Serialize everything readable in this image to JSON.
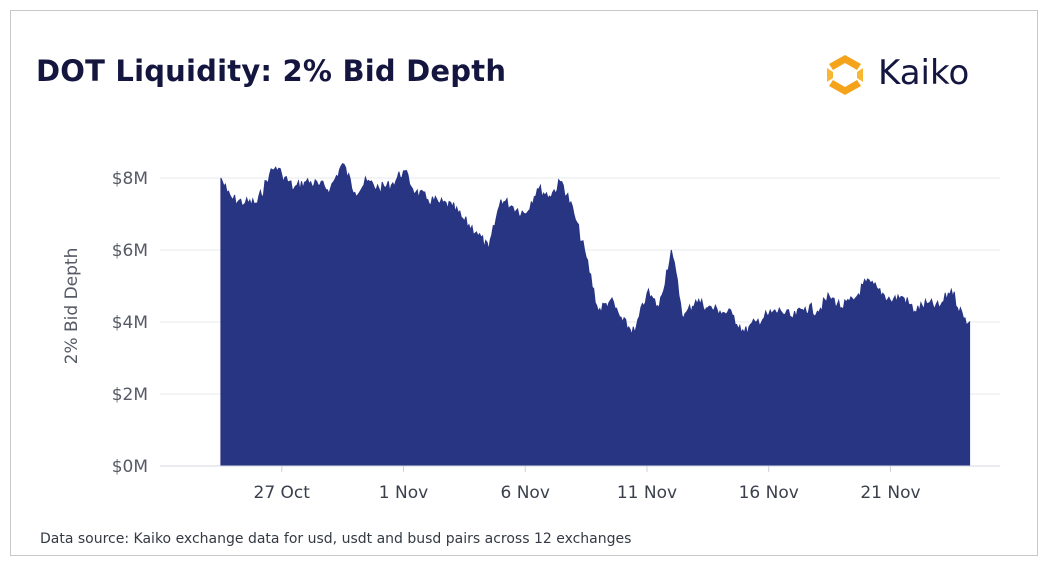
{
  "title": "DOT Liquidity: 2% Bid Depth",
  "logo": {
    "text": "Kaiko",
    "icon": "kaiko-logo-icon",
    "colors": {
      "orange": "#f5a31a",
      "dark": "#14163f"
    }
  },
  "source": "Data source: Kaiko exchange data for usd, usdt and busd pairs across 12 exchanges",
  "chart_data": {
    "type": "area",
    "title": "DOT Liquidity: 2% Bid Depth",
    "ylabel": "2% Bid Depth",
    "xlabel": "",
    "ylim": [
      0,
      8500000
    ],
    "y_ticks": [
      {
        "value": 0,
        "label": "$0M"
      },
      {
        "value": 2000000,
        "label": "$2M"
      },
      {
        "value": 4000000,
        "label": "$4M"
      },
      {
        "value": 6000000,
        "label": "$6M"
      },
      {
        "value": 8000000,
        "label": "$8M"
      }
    ],
    "x_ticks": [
      {
        "date": "2022-10-27",
        "label": "27 Oct"
      },
      {
        "date": "2022-11-01",
        "label": "1 Nov"
      },
      {
        "date": "2022-11-06",
        "label": "6 Nov"
      },
      {
        "date": "2022-11-11",
        "label": "11 Nov"
      },
      {
        "date": "2022-11-16",
        "label": "16 Nov"
      },
      {
        "date": "2022-11-21",
        "label": "21 Nov"
      }
    ],
    "xlim": [
      "2022-10-22T00:00",
      "2022-11-25T12:00"
    ],
    "grid": true,
    "fill_color": "#283583",
    "series": [
      {
        "x": [
          "2022-10-24T12:00",
          "2022-10-24T18:00",
          "2022-10-25T00:00",
          "2022-10-25T12:00",
          "2022-10-26T00:00",
          "2022-10-26T12:00",
          "2022-10-26T18:00",
          "2022-10-27T00:00",
          "2022-10-27T12:00",
          "2022-10-28T00:00",
          "2022-10-28T12:00",
          "2022-10-29T00:00",
          "2022-10-29T12:00",
          "2022-10-30T00:00",
          "2022-10-30T12:00",
          "2022-10-31T00:00",
          "2022-10-31T12:00",
          "2022-11-01T00:00",
          "2022-11-01T12:00",
          "2022-11-02T00:00",
          "2022-11-02T12:00",
          "2022-11-03T00:00",
          "2022-11-03T12:00",
          "2022-11-04T00:00",
          "2022-11-04T12:00",
          "2022-11-05T00:00",
          "2022-11-05T12:00",
          "2022-11-06T00:00",
          "2022-11-06T12:00",
          "2022-11-07T00:00",
          "2022-11-07T12:00",
          "2022-11-08T00:00",
          "2022-11-08T12:00",
          "2022-11-09T00:00",
          "2022-11-09T12:00",
          "2022-11-10T00:00",
          "2022-11-10T12:00",
          "2022-11-11T00:00",
          "2022-11-11T12:00",
          "2022-11-12T00:00",
          "2022-11-12T12:00",
          "2022-11-13T00:00",
          "2022-11-13T12:00",
          "2022-11-14T00:00",
          "2022-11-14T12:00",
          "2022-11-15T00:00",
          "2022-11-15T12:00",
          "2022-11-16T00:00",
          "2022-11-16T12:00",
          "2022-11-17T00:00",
          "2022-11-17T12:00",
          "2022-11-18T00:00",
          "2022-11-18T12:00",
          "2022-11-19T00:00",
          "2022-11-19T12:00",
          "2022-11-20T00:00",
          "2022-11-20T12:00",
          "2022-11-21T00:00",
          "2022-11-21T12:00",
          "2022-11-22T00:00",
          "2022-11-22T12:00",
          "2022-11-23T00:00",
          "2022-11-23T12:00",
          "2022-11-24T00:00",
          "2022-11-24T06:00"
        ],
        "values": [
          8000000,
          7600000,
          7400000,
          7300000,
          7300000,
          8100000,
          8300000,
          8100000,
          7700000,
          7900000,
          7800000,
          7700000,
          8400000,
          7600000,
          7900000,
          7700000,
          7800000,
          8200000,
          7600000,
          7400000,
          7300000,
          7200000,
          6800000,
          6500000,
          6000000,
          7400000,
          7200000,
          7000000,
          7700000,
          7500000,
          7900000,
          7000000,
          5800000,
          4300000,
          4600000,
          4000000,
          3700000,
          4800000,
          4400000,
          6000000,
          4100000,
          4600000,
          4400000,
          4300000,
          4200000,
          3700000,
          4000000,
          4200000,
          4300000,
          4100000,
          4400000,
          4300000,
          4700000,
          4400000,
          4600000,
          5100000,
          4900000,
          4600000,
          4700000,
          4300000,
          4500000,
          4400000,
          4900000,
          4100000,
          4000000
        ]
      }
    ]
  }
}
